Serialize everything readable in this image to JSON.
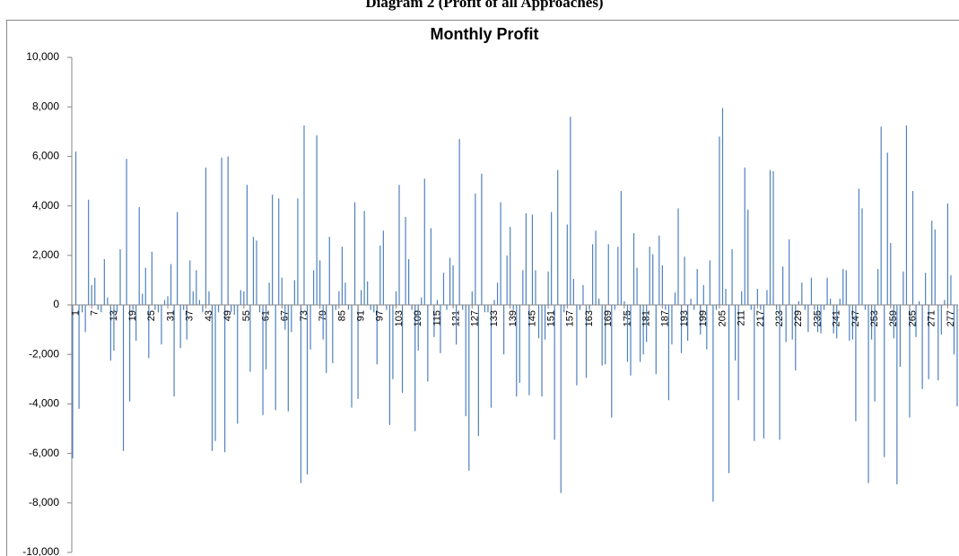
{
  "chart_data": {
    "type": "bar",
    "caption": "Diagram 2 (Profit of all Approaches)",
    "title": "Monthly Profit",
    "color": "#4f81bd",
    "grid": false,
    "ylim": [
      -10000,
      10000
    ],
    "yticks": [
      {
        "value": -10000,
        "label": "-10,000"
      },
      {
        "value": -8000,
        "label": "-8,000"
      },
      {
        "value": -6000,
        "label": "-6,000"
      },
      {
        "value": -4000,
        "label": "-4,000"
      },
      {
        "value": -2000,
        "label": "-2,000"
      },
      0,
      {
        "value": 2000,
        "label": "2,000"
      },
      {
        "value": 4000,
        "label": "4,000"
      },
      {
        "value": 6000,
        "label": "6,000"
      },
      {
        "value": 8000,
        "label": "8,000"
      },
      {
        "value": 10000,
        "label": "10,000"
      }
    ],
    "categories": [
      "1",
      null,
      null,
      null,
      null,
      null,
      "7",
      null,
      null,
      null,
      null,
      null,
      "13",
      null,
      null,
      null,
      null,
      null,
      "19",
      null,
      null,
      null,
      null,
      null,
      "25",
      null,
      null,
      null,
      null,
      null,
      "31",
      null,
      null,
      null,
      null,
      null,
      "37",
      null,
      null,
      null,
      null,
      null,
      "43",
      null,
      null,
      null,
      null,
      null,
      "49",
      null,
      null,
      null,
      null,
      null,
      "55",
      null,
      null,
      null,
      null,
      null,
      "61",
      null,
      null,
      null,
      null,
      null,
      "67",
      null,
      null,
      null,
      null,
      null,
      "73",
      null,
      null,
      null,
      null,
      null,
      "79",
      null,
      null,
      null,
      null,
      null,
      "85",
      null,
      null,
      null,
      null,
      null,
      "91",
      null,
      null,
      null,
      null,
      null,
      "97",
      null,
      null,
      null,
      null,
      null,
      "103",
      null,
      null,
      null,
      null,
      null,
      "109",
      null,
      null,
      null,
      null,
      null,
      "115",
      null,
      null,
      null,
      null,
      null,
      "121",
      null,
      null,
      null,
      null,
      null,
      "127",
      null,
      null,
      null,
      null,
      null,
      "133",
      null,
      null,
      null,
      null,
      null,
      "139",
      null,
      null,
      null,
      null,
      null,
      "145",
      null,
      null,
      null,
      null,
      null,
      "151",
      null,
      null,
      null,
      null,
      null,
      "157",
      null,
      null,
      null,
      null,
      null,
      "163",
      null,
      null,
      null,
      null,
      null,
      "169",
      null,
      null,
      null,
      null,
      null,
      "175",
      null,
      null,
      null,
      null,
      null,
      "181",
      null,
      null,
      null,
      null,
      null,
      "187",
      null,
      null,
      null,
      null,
      null,
      "193",
      null,
      null,
      null,
      null,
      null,
      "199",
      null,
      null,
      null,
      null,
      null,
      "205",
      null,
      null,
      null,
      null,
      null,
      "211",
      null,
      null,
      null,
      null,
      null,
      "217",
      null,
      null,
      null,
      null,
      null,
      "223",
      null,
      null,
      null,
      null,
      null,
      "229",
      null,
      null,
      null,
      null,
      null,
      "235",
      null,
      null,
      null,
      null,
      null,
      "241",
      null,
      null,
      null,
      null,
      null,
      "247",
      null,
      null,
      null,
      null,
      null,
      "253",
      null,
      null,
      null,
      null,
      null,
      "259",
      null,
      null,
      null,
      null,
      null,
      "265",
      null,
      null,
      null,
      null,
      null,
      "271",
      null,
      null,
      null,
      null,
      null,
      "277",
      null,
      null,
      null
    ],
    "values": [
      -6200,
      6200,
      -4200,
      -300,
      -1100,
      4250,
      800,
      1100,
      -200,
      -300,
      1850,
      300,
      -2250,
      -1850,
      -300,
      2250,
      -5900,
      5900,
      -3900,
      -200,
      -1450,
      3950,
      450,
      1500,
      -2150,
      2150,
      -200,
      -300,
      -1600,
      200,
      350,
      1650,
      -3700,
      3750,
      -1750,
      -200,
      -1400,
      1800,
      550,
      1400,
      200,
      -300,
      5550,
      550,
      -5900,
      -5500,
      -300,
      5950,
      -5950,
      6000,
      -300,
      -400,
      -4800,
      600,
      550,
      4850,
      -2700,
      2750,
      2600,
      -300,
      -4450,
      -2600,
      900,
      4450,
      -4250,
      4300,
      1100,
      -1000,
      -4300,
      -1100,
      1000,
      4300,
      -7200,
      7250,
      -6850,
      -1800,
      1400,
      6850,
      1800,
      -1400,
      -2750,
      2750,
      -2350,
      -200,
      550,
      2350,
      900,
      -200,
      -4150,
      4150,
      -3800,
      600,
      3800,
      950,
      -200,
      -300,
      -2400,
      2400,
      3000,
      -200,
      -4850,
      -3000,
      550,
      4850,
      -3550,
      3550,
      1850,
      -200,
      -5100,
      -1850,
      300,
      5100,
      -3100,
      3100,
      -1300,
      200,
      -1950,
      1300,
      -200,
      1900,
      1600,
      -1600,
      6700,
      -200,
      -4500,
      -6700,
      550,
      4500,
      -5300,
      5300,
      -300,
      -300,
      -4150,
      200,
      900,
      4150,
      -2000,
      2000,
      3150,
      -200,
      -3700,
      -3150,
      1400,
      3700,
      -3650,
      3650,
      1400,
      -1350,
      -3700,
      -1400,
      1350,
      3750,
      -5450,
      5450,
      -7600,
      -300,
      3250,
      7600,
      1050,
      -3250,
      -200,
      800,
      -2950,
      -200,
      2450,
      3000,
      250,
      -2450,
      -2400,
      2450,
      -4550,
      -200,
      2350,
      4600,
      150,
      -2300,
      -2850,
      2900,
      1500,
      -2300,
      -2000,
      -1500,
      2350,
      2050,
      -2800,
      2800,
      1600,
      -200,
      -3850,
      -1600,
      500,
      3900,
      -1950,
      1950,
      -1450,
      250,
      -200,
      1450,
      -1200,
      800,
      -1800,
      1800,
      -7950,
      -200,
      6800,
      7950,
      650,
      -6800,
      2250,
      -2250,
      -3850,
      550,
      5550,
      3850,
      -200,
      -5500,
      650,
      -200,
      -5400,
      600,
      5450,
      5400,
      -200,
      -5450,
      1550,
      -1500,
      2650,
      -1400,
      -2650,
      150,
      900,
      -200,
      -1100,
      1100,
      -200,
      -1100,
      -1150,
      -200,
      1100,
      250,
      -1150,
      -1350,
      250,
      1450,
      1400,
      -1450,
      -1400,
      -4700,
      4700,
      3900,
      -200,
      -7200,
      -1400,
      -3900,
      1450,
      7200,
      -6150,
      6150,
      2500,
      -1350,
      -7250,
      -2500,
      1350,
      7250,
      -4550,
      4600,
      -1300,
      150,
      -3400,
      1300,
      -3000,
      3400,
      3050,
      -3050,
      -1200,
      200,
      4100,
      1200,
      -2000,
      -4100
    ]
  }
}
